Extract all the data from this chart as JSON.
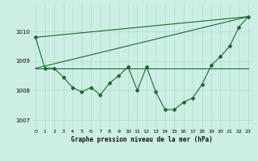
{
  "background_color": "#cceee4",
  "grid_color": "#aaddcc",
  "line_color": "#1a6b2e",
  "title": "Graphe pression niveau de la mer (hPa)",
  "xlim": [
    -0.5,
    23.5
  ],
  "ylim": [
    1006.7,
    1010.9
  ],
  "yticks": [
    1007,
    1008,
    1009,
    1010
  ],
  "xticks": [
    0,
    1,
    2,
    3,
    4,
    5,
    6,
    7,
    8,
    9,
    10,
    11,
    12,
    13,
    14,
    15,
    16,
    17,
    18,
    19,
    20,
    21,
    22,
    23
  ],
  "xtick_labels": [
    "0",
    "1",
    "2",
    "3",
    "4",
    "5",
    "6",
    "7",
    "8",
    "9",
    "10",
    "11",
    "12",
    "13",
    "14",
    "15",
    "16",
    "17",
    "18",
    "19",
    "20",
    "21",
    "22",
    "23"
  ],
  "main_series": {
    "x": [
      0,
      1,
      2,
      3,
      4,
      5,
      6,
      7,
      8,
      9,
      10,
      11,
      12,
      13,
      14,
      15,
      16,
      17,
      18,
      19,
      20,
      21,
      22,
      23
    ],
    "y": [
      1009.8,
      1008.75,
      1008.75,
      1008.45,
      1008.1,
      1007.95,
      1008.1,
      1007.85,
      1008.25,
      1008.5,
      1008.8,
      1008.0,
      1008.8,
      1007.95,
      1007.35,
      1007.35,
      1007.6,
      1007.75,
      1008.2,
      1008.85,
      1009.15,
      1009.5,
      1010.15,
      1010.5
    ]
  },
  "ref_lines": [
    {
      "x": [
        0,
        23
      ],
      "y": [
        1009.8,
        1010.5
      ]
    },
    {
      "x": [
        0,
        23
      ],
      "y": [
        1008.75,
        1008.75
      ]
    },
    {
      "x": [
        0,
        23
      ],
      "y": [
        1008.75,
        1010.5
      ]
    }
  ]
}
